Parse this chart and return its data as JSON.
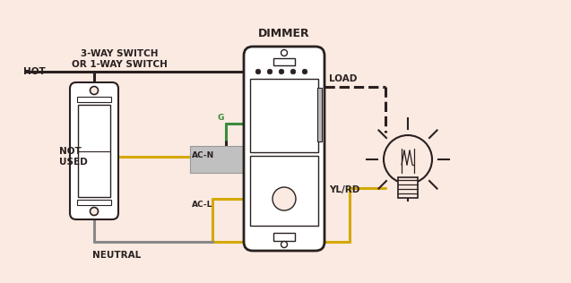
{
  "bg_color": "#faeae2",
  "dark_color": "#2a2020",
  "yellow_color": "#d4a800",
  "gray_color": "#888888",
  "green_color": "#3a8a3a",
  "white_color": "#ffffff",
  "light_gray": "#bbbbbb",
  "title_switch": "3-WAY SWITCH\nOR 1-WAY SWITCH",
  "title_dimmer": "DIMMER",
  "label_hot": "HOT",
  "label_not_used": "NOT\nUSED",
  "label_neutral": "NEUTRAL",
  "label_load": "LOAD",
  "label_ylrd": "YL/RD",
  "label_acn": "AC-N",
  "label_acl": "AC-L",
  "label_g": "G",
  "fig_w": 6.37,
  "fig_h": 3.16,
  "dpi": 100
}
